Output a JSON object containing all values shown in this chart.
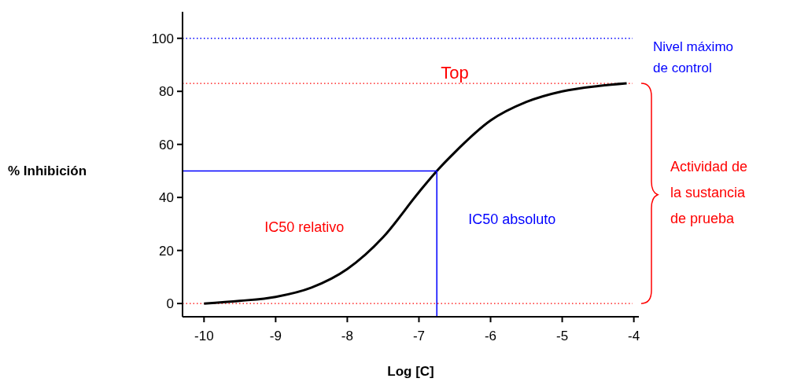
{
  "chart_data": {
    "type": "line",
    "xlabel": "Log [C]",
    "ylabel": "% Inhibición",
    "xlim": [
      -10.3,
      -3.93
    ],
    "ylim": [
      -5,
      110
    ],
    "xticks": [
      -10,
      -9,
      -8,
      -7,
      -6,
      -5,
      -4
    ],
    "yticks": [
      0,
      20,
      40,
      60,
      80,
      100
    ],
    "grid": false,
    "marker": "none",
    "series": [
      {
        "color": "#000000",
        "x": [
          -10,
          -9.5,
          -9,
          -8.5,
          -8,
          -7.5,
          -7,
          -6.75,
          -6.5,
          -6,
          -5.5,
          -5,
          -4.5,
          -4.1
        ],
        "values": [
          0,
          1,
          2.5,
          6,
          13,
          25,
          42,
          50,
          57,
          69,
          76,
          80,
          82,
          83
        ]
      },
      {
        "color": "#0000ff",
        "x": [
          -10.3,
          -6.75,
          -6.75
        ],
        "values": [
          50,
          50,
          -5
        ],
        "line_style": "solid"
      }
    ],
    "ref_lines": [
      {
        "axis": "y",
        "value": 100,
        "label": "Nivel máximo de control",
        "color": "#0000ff",
        "line_style": "dotted"
      },
      {
        "axis": "y",
        "value": 83,
        "label": "Top",
        "color": "#ff0000",
        "line_style": "dotted"
      },
      {
        "axis": "y",
        "value": 0,
        "color": "#ff0000",
        "line_style": "dotted"
      }
    ],
    "annotations": [
      "IC50 relativo",
      "IC50 absoluto",
      "Actividad de la sustancia de prueba"
    ]
  }
}
